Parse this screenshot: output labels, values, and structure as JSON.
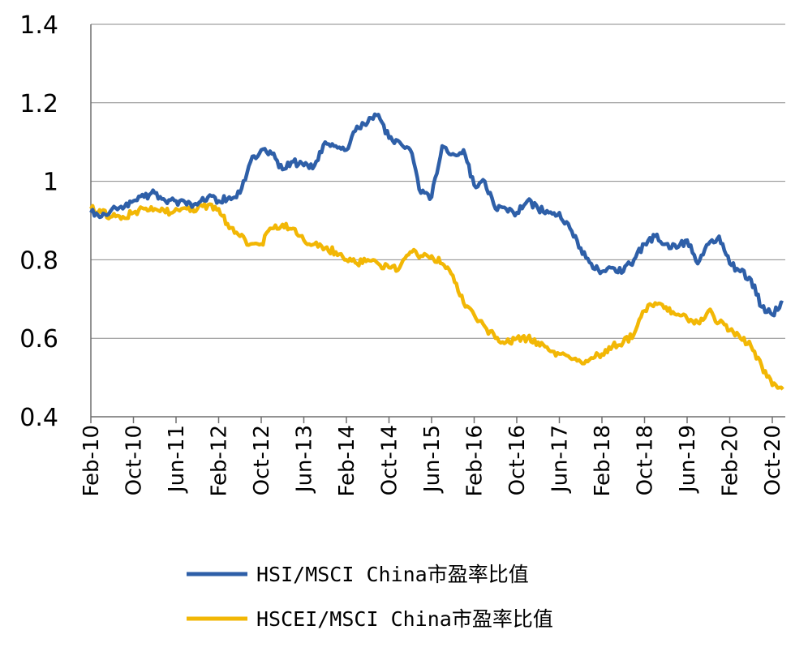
{
  "chart_data": {
    "type": "line",
    "title": "",
    "xlabel": "",
    "ylabel": "",
    "ylim": [
      0.4,
      1.4
    ],
    "yticks": [
      "0.4",
      "0.6",
      "0.8",
      "1",
      "1.2",
      "1.4"
    ],
    "grid": "horizontal",
    "legend_position": "bottom",
    "x_tick_labels": [
      "Feb-10",
      "Oct-10",
      "Jun-11",
      "Feb-12",
      "Oct-12",
      "Jun-13",
      "Feb-14",
      "Oct-14",
      "Jun-15",
      "Feb-16",
      "Oct-16",
      "Jun-17",
      "Feb-18",
      "Oct-18",
      "Jun-19",
      "Feb-20",
      "Oct-20"
    ],
    "x": [
      "2010-02",
      "2010-04",
      "2010-06",
      "2010-08",
      "2010-10",
      "2010-12",
      "2011-02",
      "2011-04",
      "2011-06",
      "2011-08",
      "2011-10",
      "2011-12",
      "2012-02",
      "2012-04",
      "2012-06",
      "2012-08",
      "2012-10",
      "2012-12",
      "2013-02",
      "2013-04",
      "2013-06",
      "2013-08",
      "2013-10",
      "2013-12",
      "2014-02",
      "2014-04",
      "2014-06",
      "2014-08",
      "2014-10",
      "2014-12",
      "2015-02",
      "2015-04",
      "2015-06",
      "2015-08",
      "2015-10",
      "2015-12",
      "2016-02",
      "2016-04",
      "2016-06",
      "2016-08",
      "2016-10",
      "2016-12",
      "2017-02",
      "2017-04",
      "2017-06",
      "2017-08",
      "2017-10",
      "2017-12",
      "2018-02",
      "2018-04",
      "2018-06",
      "2018-08",
      "2018-10",
      "2018-12",
      "2019-02",
      "2019-04",
      "2019-06",
      "2019-08",
      "2019-10",
      "2019-12",
      "2020-02",
      "2020-04",
      "2020-06",
      "2020-08",
      "2020-10",
      "2020-12"
    ],
    "series": [
      {
        "name": "HSI/MSCI China市盈率比值",
        "color": "#2E5FA8",
        "values": [
          0.92,
          0.91,
          0.93,
          0.93,
          0.95,
          0.96,
          0.97,
          0.95,
          0.95,
          0.94,
          0.94,
          0.96,
          0.95,
          0.96,
          0.97,
          1.05,
          1.08,
          1.07,
          1.03,
          1.05,
          1.04,
          1.04,
          1.1,
          1.09,
          1.08,
          1.14,
          1.15,
          1.17,
          1.11,
          1.1,
          1.08,
          0.97,
          0.96,
          1.09,
          1.07,
          1.08,
          0.99,
          1.0,
          0.93,
          0.93,
          0.92,
          0.95,
          0.93,
          0.92,
          0.92,
          0.88,
          0.83,
          0.79,
          0.77,
          0.78,
          0.77,
          0.8,
          0.84,
          0.86,
          0.84,
          0.83,
          0.85,
          0.79,
          0.84,
          0.86,
          0.79,
          0.77,
          0.75,
          0.68,
          0.66,
          0.69
        ]
      },
      {
        "name": "HSCEI/MSCI China市盈率比值",
        "color": "#F2B705",
        "values": [
          0.93,
          0.92,
          0.91,
          0.91,
          0.92,
          0.93,
          0.93,
          0.92,
          0.93,
          0.93,
          0.93,
          0.94,
          0.93,
          0.88,
          0.86,
          0.84,
          0.84,
          0.88,
          0.89,
          0.88,
          0.85,
          0.84,
          0.83,
          0.82,
          0.8,
          0.79,
          0.8,
          0.79,
          0.78,
          0.78,
          0.82,
          0.81,
          0.81,
          0.79,
          0.76,
          0.69,
          0.66,
          0.63,
          0.6,
          0.59,
          0.6,
          0.6,
          0.59,
          0.57,
          0.56,
          0.55,
          0.54,
          0.55,
          0.56,
          0.58,
          0.59,
          0.61,
          0.67,
          0.69,
          0.68,
          0.66,
          0.65,
          0.64,
          0.67,
          0.64,
          0.62,
          0.6,
          0.58,
          0.53,
          0.48,
          0.47
        ]
      }
    ]
  }
}
